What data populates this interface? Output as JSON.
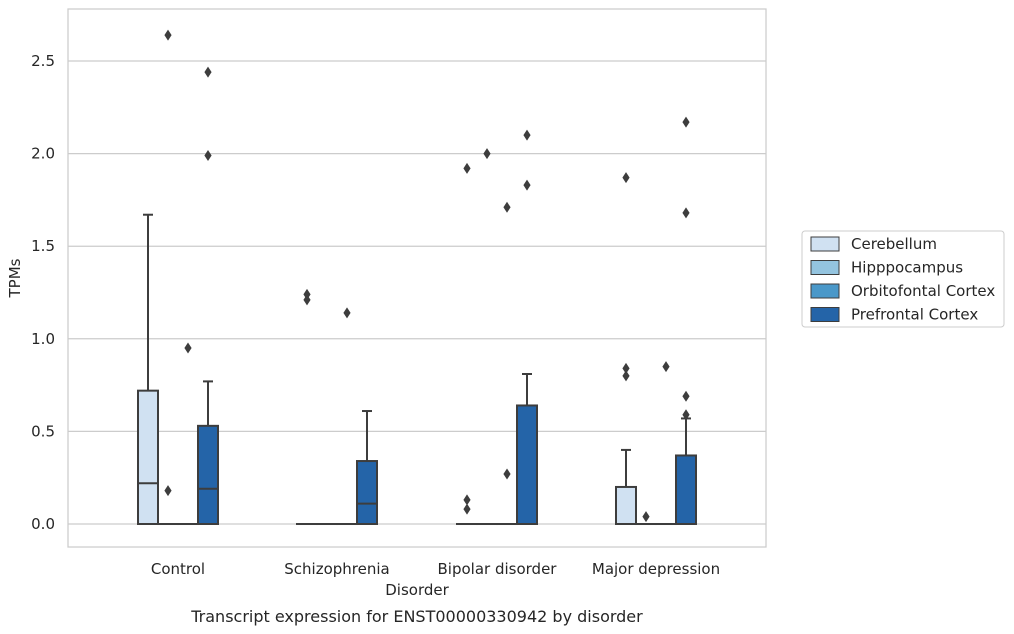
{
  "chart_data": {
    "type": "boxplot",
    "title": "",
    "caption": "Transcript expression for ENST00000330942 by disorder",
    "xlabel": "Disorder",
    "ylabel": "TPMs",
    "ylim": [
      -0.13,
      2.78
    ],
    "yticks": [
      0.0,
      0.5,
      1.0,
      1.5,
      2.0,
      2.5
    ],
    "ytick_labels": [
      "0.0",
      "0.5",
      "1.0",
      "1.5",
      "2.0",
      "2.5"
    ],
    "grid": "horizontal",
    "legend_position": "right",
    "categories": [
      "Control",
      "Schizophrenia",
      "Bipolar disorder",
      "Major depression"
    ],
    "series": [
      {
        "name": "Cerebellum",
        "color": "#d0e1f2",
        "boxes": [
          {
            "q1": 0.0,
            "median": 0.22,
            "q3": 0.72,
            "whisker_low": 0.0,
            "whisker_high": 1.67,
            "outliers": []
          },
          {
            "q1": 0.0,
            "median": 0.0,
            "q3": 0.0,
            "whisker_low": 0.0,
            "whisker_high": 0.0,
            "outliers": [
              1.21,
              1.24
            ]
          },
          {
            "q1": 0.0,
            "median": 0.0,
            "q3": 0.0,
            "whisker_low": 0.0,
            "whisker_high": 0.0,
            "outliers": [
              0.08,
              0.13,
              1.92
            ]
          },
          {
            "q1": 0.0,
            "median": 0.0,
            "q3": 0.2,
            "whisker_low": 0.0,
            "whisker_high": 0.4,
            "outliers": [
              0.8,
              0.84,
              1.87
            ]
          }
        ]
      },
      {
        "name": "Hipppocampus",
        "color": "#94c4df",
        "boxes": [
          {
            "q1": 0.0,
            "median": 0.0,
            "q3": 0.0,
            "whisker_low": 0.0,
            "whisker_high": 0.0,
            "outliers": [
              0.18,
              2.64
            ]
          },
          {
            "q1": 0.0,
            "median": 0.0,
            "q3": 0.0,
            "whisker_low": 0.0,
            "whisker_high": 0.0,
            "outliers": []
          },
          {
            "q1": 0.0,
            "median": 0.0,
            "q3": 0.0,
            "whisker_low": 0.0,
            "whisker_high": 0.0,
            "outliers": [
              2.0
            ]
          },
          {
            "q1": 0.0,
            "median": 0.0,
            "q3": 0.0,
            "whisker_low": 0.0,
            "whisker_high": 0.0,
            "outliers": [
              0.04
            ]
          }
        ]
      },
      {
        "name": "Orbitofontal Cortex",
        "color": "#4a98c9",
        "boxes": [
          {
            "q1": 0.0,
            "median": 0.0,
            "q3": 0.0,
            "whisker_low": 0.0,
            "whisker_high": 0.0,
            "outliers": [
              0.95
            ]
          },
          {
            "q1": 0.0,
            "median": 0.0,
            "q3": 0.0,
            "whisker_low": 0.0,
            "whisker_high": 0.0,
            "outliers": [
              1.14
            ]
          },
          {
            "q1": 0.0,
            "median": 0.0,
            "q3": 0.0,
            "whisker_low": 0.0,
            "whisker_high": 0.0,
            "outliers": [
              0.27,
              1.71
            ]
          },
          {
            "q1": 0.0,
            "median": 0.0,
            "q3": 0.0,
            "whisker_low": 0.0,
            "whisker_high": 0.0,
            "outliers": [
              0.85
            ]
          }
        ]
      },
      {
        "name": "Prefrontal Cortex",
        "color": "#2464a8",
        "boxes": [
          {
            "q1": 0.0,
            "median": 0.19,
            "q3": 0.53,
            "whisker_low": 0.0,
            "whisker_high": 0.77,
            "outliers": [
              1.99,
              2.44
            ]
          },
          {
            "q1": 0.0,
            "median": 0.11,
            "q3": 0.34,
            "whisker_low": 0.0,
            "whisker_high": 0.61,
            "outliers": []
          },
          {
            "q1": 0.0,
            "median": 0.0,
            "q3": 0.64,
            "whisker_low": 0.0,
            "whisker_high": 0.81,
            "outliers": [
              1.83,
              2.1
            ]
          },
          {
            "q1": 0.0,
            "median": 0.0,
            "q3": 0.37,
            "whisker_low": 0.0,
            "whisker_high": 0.57,
            "outliers": [
              0.59,
              0.69,
              1.68,
              2.17
            ]
          }
        ]
      }
    ]
  }
}
